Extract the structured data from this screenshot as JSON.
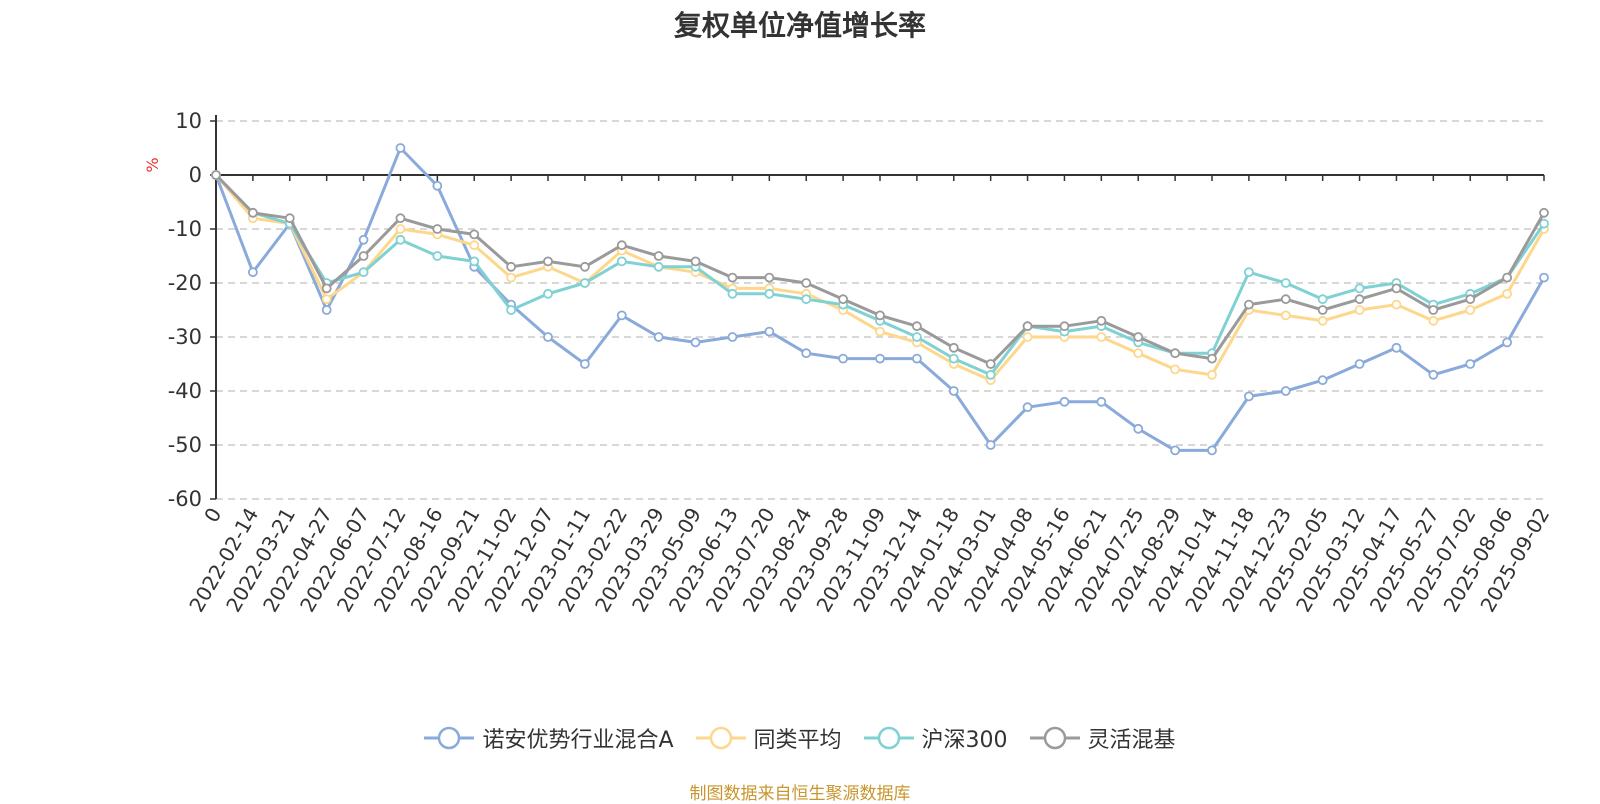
{
  "chart_data": {
    "type": "line",
    "title": "复权单位净值增长率",
    "ylabel": "%",
    "ylim": [
      -60,
      10
    ],
    "yticks": [
      10,
      0,
      -10,
      -20,
      -30,
      -40,
      -50,
      -60
    ],
    "x": [
      "0",
      "2022-02-14",
      "2022-03-21",
      "2022-04-27",
      "2022-06-07",
      "2022-07-12",
      "2022-08-16",
      "2022-09-21",
      "2022-11-02",
      "2022-12-07",
      "2023-01-11",
      "2023-02-22",
      "2023-03-29",
      "2023-05-09",
      "2023-06-13",
      "2023-07-20",
      "2023-08-24",
      "2023-09-28",
      "2023-11-09",
      "2023-12-14",
      "2024-01-18",
      "2024-03-01",
      "2024-04-08",
      "2024-05-16",
      "2024-06-21",
      "2024-07-25",
      "2024-08-29",
      "2024-10-14",
      "2024-11-18",
      "2024-12-23",
      "2025-02-05",
      "2025-03-12",
      "2025-04-17",
      "2025-05-27",
      "2025-07-02",
      "2025-08-06",
      "2025-09-02"
    ],
    "series": [
      {
        "name": "诺安优势行业混合A",
        "color": "#8aaadb",
        "values": [
          0,
          -18,
          -9,
          -25,
          -12,
          5,
          -2,
          -17,
          -24,
          -30,
          -35,
          -26,
          -30,
          -31,
          -30,
          -29,
          -33,
          -34,
          -34,
          -34,
          -40,
          -50,
          -43,
          -42,
          -42,
          -47,
          -51,
          -51,
          -41,
          -40,
          -38,
          -35,
          -32,
          -37,
          -35,
          -31,
          -19
        ]
      },
      {
        "name": "同类平均",
        "color": "#fdd78c",
        "values": [
          0,
          -8,
          -9,
          -23,
          -18,
          -10,
          -11,
          -13,
          -19,
          -17,
          -20,
          -14,
          -17,
          -18,
          -21,
          -21,
          -22,
          -25,
          -29,
          -31,
          -35,
          -38,
          -30,
          -30,
          -30,
          -33,
          -36,
          -37,
          -25,
          -26,
          -27,
          -25,
          -24,
          -27,
          -25,
          -22,
          -10
        ]
      },
      {
        "name": "沪深300",
        "color": "#7fd1d3",
        "values": [
          0,
          -7,
          -9,
          -20,
          -18,
          -12,
          -15,
          -16,
          -25,
          -22,
          -20,
          -16,
          -17,
          -17,
          -22,
          -22,
          -23,
          -24,
          -27,
          -30,
          -34,
          -37,
          -28,
          -29,
          -28,
          -31,
          -33,
          -33,
          -18,
          -20,
          -23,
          -21,
          -20,
          -24,
          -22,
          -19,
          -9
        ]
      },
      {
        "name": "灵活混基",
        "color": "#9a9a9a",
        "values": [
          0,
          -7,
          -8,
          -21,
          -15,
          -8,
          -10,
          -11,
          -17,
          -16,
          -17,
          -13,
          -15,
          -16,
          -19,
          -19,
          -20,
          -23,
          -26,
          -28,
          -32,
          -35,
          -28,
          -28,
          -27,
          -30,
          -33,
          -34,
          -24,
          -23,
          -25,
          -23,
          -21,
          -25,
          -23,
          -19,
          -7
        ]
      }
    ],
    "grid": true,
    "legend_position": "bottom-center"
  },
  "source_note": "制图数据来自恒生聚源数据库"
}
